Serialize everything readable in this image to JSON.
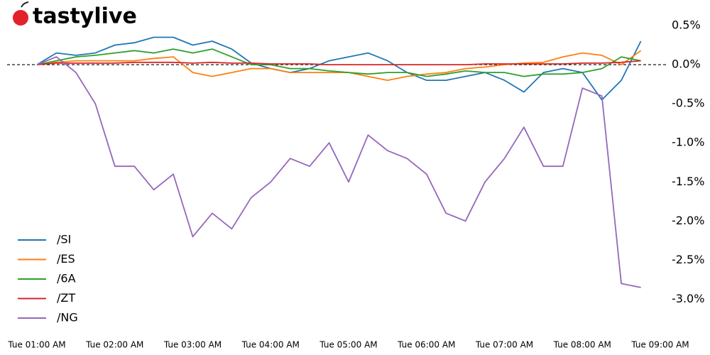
{
  "logo": "tastylive",
  "chart_data": {
    "type": "line",
    "categories": [
      "Tue 01:00 AM",
      null,
      null,
      null,
      "Tue 02:00 AM",
      null,
      null,
      null,
      "Tue 03:00 AM",
      null,
      null,
      null,
      "Tue 04:00 AM",
      null,
      null,
      null,
      "Tue 05:00 AM",
      null,
      null,
      null,
      "Tue 06:00 AM",
      null,
      null,
      null,
      "Tue 07:00 AM",
      null,
      null,
      null,
      "Tue 08:00 AM",
      null,
      null,
      null,
      "Tue 09:00 AM"
    ],
    "series": [
      {
        "name": "/SI",
        "color": "#1f77b4",
        "values": [
          0.0,
          0.15,
          0.12,
          0.15,
          0.25,
          0.28,
          0.35,
          0.35,
          0.25,
          0.3,
          0.2,
          0.02,
          -0.05,
          -0.1,
          -0.05,
          0.05,
          0.1,
          0.15,
          0.05,
          -0.1,
          -0.2,
          -0.2,
          -0.15,
          -0.1,
          -0.2,
          -0.35,
          -0.1,
          -0.05,
          -0.1,
          -0.45,
          -0.2,
          0.3,
          null
        ]
      },
      {
        "name": "/ES",
        "color": "#ff7f0e",
        "values": [
          0.0,
          0.03,
          0.05,
          0.05,
          0.05,
          0.05,
          0.08,
          0.1,
          -0.1,
          -0.15,
          -0.1,
          -0.05,
          -0.05,
          -0.1,
          -0.1,
          -0.1,
          -0.1,
          -0.15,
          -0.2,
          -0.15,
          -0.12,
          -0.1,
          -0.05,
          -0.03,
          0.0,
          0.02,
          0.03,
          0.1,
          0.15,
          0.12,
          0.0,
          0.18,
          null
        ]
      },
      {
        "name": "/6A",
        "color": "#2ca02c",
        "values": [
          0.0,
          0.05,
          0.1,
          0.12,
          0.15,
          0.18,
          0.15,
          0.2,
          0.15,
          0.2,
          0.1,
          0.0,
          0.0,
          -0.05,
          -0.05,
          -0.08,
          -0.1,
          -0.12,
          -0.1,
          -0.1,
          -0.15,
          -0.12,
          -0.08,
          -0.1,
          -0.1,
          -0.15,
          -0.12,
          -0.12,
          -0.1,
          -0.05,
          0.1,
          0.05,
          null
        ]
      },
      {
        "name": "/ZT",
        "color": "#d62728",
        "values": [
          0.0,
          0.02,
          0.02,
          0.02,
          0.02,
          0.03,
          0.03,
          0.03,
          0.02,
          0.03,
          0.02,
          0.02,
          0.01,
          0.01,
          0.01,
          0.0,
          0.0,
          0.0,
          0.0,
          0.0,
          0.0,
          0.0,
          0.0,
          0.01,
          0.01,
          0.01,
          0.01,
          0.01,
          0.02,
          0.02,
          0.03,
          0.05,
          null
        ]
      },
      {
        "name": "/NG",
        "color": "#9467bd",
        "values": [
          0.0,
          0.1,
          -0.1,
          -0.5,
          -1.3,
          -1.3,
          -1.6,
          -1.4,
          -2.2,
          -1.9,
          -2.1,
          -1.7,
          -1.5,
          -1.2,
          -1.3,
          -1.0,
          -1.5,
          -0.9,
          -1.1,
          -1.2,
          -1.4,
          -1.9,
          -2.0,
          -1.5,
          -1.2,
          -0.8,
          -1.3,
          -1.3,
          -0.3,
          -0.4,
          -2.8,
          -2.85,
          null
        ]
      }
    ],
    "ylim": [
      -3.35,
      0.6
    ],
    "yticks": [
      {
        "value": 0.5,
        "label": "0.5%"
      },
      {
        "value": 0.0,
        "label": "0.0%"
      },
      {
        "value": -0.5,
        "label": "-0.5%"
      },
      {
        "value": -1.0,
        "label": "-1.0%"
      },
      {
        "value": -1.5,
        "label": "-1.5%"
      },
      {
        "value": -2.0,
        "label": "-2.0%"
      },
      {
        "value": -2.5,
        "label": "-2.5%"
      },
      {
        "value": -3.0,
        "label": "-3.0%"
      }
    ],
    "zero_line": true,
    "legend": "lower-left"
  }
}
